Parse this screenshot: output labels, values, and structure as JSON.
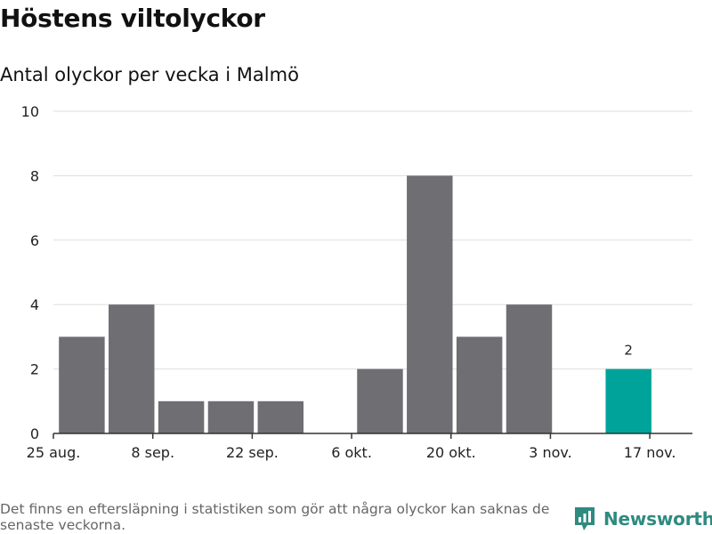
{
  "header": {
    "title": "Höstens viltolyckor",
    "subtitle": "Antal olyckor per vecka i Malmö"
  },
  "footer": {
    "note": "Det finns en eftersläpning i statistiken som gör att några olyckor kan saknas de senaste veckorna.",
    "brand": "Newsworthy"
  },
  "colors": {
    "bar": "#6e6e73",
    "highlight": "#00a39a",
    "grid": "#dddddd",
    "axis": "#333333",
    "brand": "#2e8b7f"
  },
  "chart_data": {
    "type": "bar",
    "x": [
      "2024-08-26",
      "2024-09-02",
      "2024-09-09",
      "2024-09-16",
      "2024-09-23",
      "2024-09-30",
      "2024-10-07",
      "2024-10-14",
      "2024-10-21",
      "2024-10-28",
      "2024-11-04",
      "2024-11-11"
    ],
    "values": [
      3,
      4,
      1,
      1,
      1,
      0,
      2,
      8,
      3,
      4,
      0,
      2
    ],
    "highlight_index": 11,
    "data_labels": [
      {
        "index": 11,
        "text": "2"
      }
    ],
    "xticks": [
      {
        "date": "2024-08-25",
        "label": "25 aug."
      },
      {
        "date": "2024-09-08",
        "label": "8 sep."
      },
      {
        "date": "2024-09-22",
        "label": "22 sep."
      },
      {
        "date": "2024-10-06",
        "label": "6 okt."
      },
      {
        "date": "2024-10-20",
        "label": "20 okt."
      },
      {
        "date": "2024-11-03",
        "label": "3 nov."
      },
      {
        "date": "2024-11-17",
        "label": "17 nov."
      }
    ],
    "xlim": [
      "2024-08-25",
      "2024-11-23"
    ],
    "ylim": [
      0,
      10
    ],
    "yticks": [
      0,
      2,
      4,
      6,
      8,
      10
    ],
    "grid": true,
    "xlabel": "",
    "ylabel": ""
  }
}
